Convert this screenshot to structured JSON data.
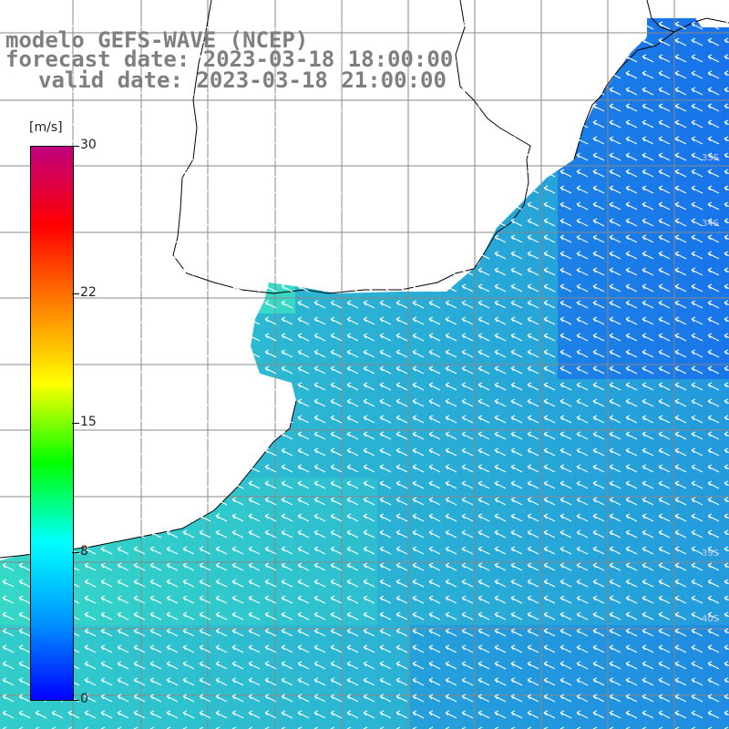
{
  "header": {
    "line1": "modelo GEFS-WAVE (NCEP)",
    "line2": "forecast date: 2023-03-18 18:00:00",
    "line3": "valid date: 2023-03-18 21:00:00"
  },
  "legend": {
    "unit": "[m/s]",
    "ticks": [
      {
        "label": "30",
        "value": 30
      },
      {
        "label": "22",
        "value": 22
      },
      {
        "label": "15",
        "value": 15
      },
      {
        "label": "8",
        "value": 8
      },
      {
        "label": "0",
        "value": 0
      }
    ],
    "colors": [
      "#0000ff",
      "#0096ff",
      "#00ffff",
      "#00ff00",
      "#ffff00",
      "#ff8000",
      "#ff0000",
      "#c00080"
    ]
  },
  "map": {
    "lat_labels": [
      "33S",
      "34S",
      "39S",
      "40S"
    ],
    "sea_color_low": "#1e64f0",
    "sea_color_mid": "#1ec8f0",
    "land_color": "#ffffff",
    "arrow_color": "#ffffff"
  }
}
